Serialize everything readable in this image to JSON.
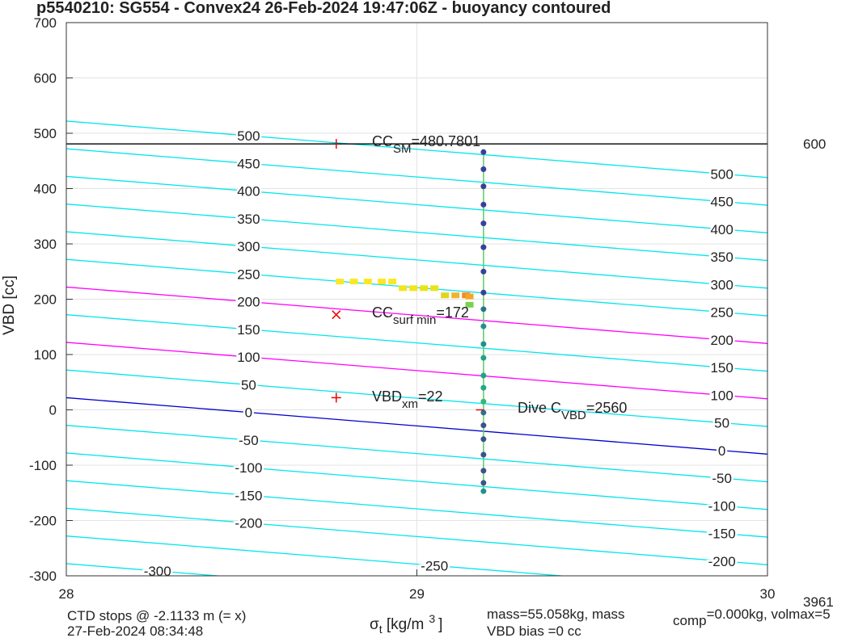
{
  "chart_data": {
    "type": "scatter",
    "title": "p5540210: SG554 - Convex24 26-Feb-2024 19:47:06Z - buoyancy contoured",
    "xlabel": {
      "symbol": "σ",
      "sub": "t",
      "text": " [kg/m",
      "sup": "3",
      "end": "]"
    },
    "ylabel": "VBD [cc]",
    "xlim": [
      28,
      30
    ],
    "xticks": [
      28,
      29,
      30
    ],
    "ylim": [
      -300,
      700
    ],
    "yticks": [
      -300,
      -200,
      -100,
      0,
      100,
      200,
      300,
      400,
      500,
      600,
      700
    ],
    "grid": true,
    "contours": [
      {
        "label": 500,
        "color": "#00e5ee",
        "values": [
          522,
          420
        ]
      },
      {
        "label": 450,
        "color": "#00e5ee",
        "values": [
          472,
          370
        ]
      },
      {
        "label": 400,
        "color": "#00e5ee",
        "values": [
          422,
          320
        ]
      },
      {
        "label": 350,
        "color": "#00e5ee",
        "values": [
          372,
          270
        ]
      },
      {
        "label": 300,
        "color": "#00e5ee",
        "values": [
          322,
          220
        ]
      },
      {
        "label": 250,
        "color": "#00e5ee",
        "values": [
          272,
          170
        ]
      },
      {
        "label": 200,
        "color": "#ff00ff",
        "values": [
          222,
          120
        ]
      },
      {
        "label": 150,
        "color": "#00e5ee",
        "values": [
          172,
          70
        ]
      },
      {
        "label": 100,
        "color": "#ff00ff",
        "values": [
          122,
          20
        ]
      },
      {
        "label": 50,
        "color": "#00e5ee",
        "values": [
          72,
          -30
        ]
      },
      {
        "label": 0,
        "color": "#0000cc",
        "values": [
          22,
          -80
        ]
      },
      {
        "label": -50,
        "color": "#00e5ee",
        "values": [
          -28,
          -130
        ]
      },
      {
        "label": -100,
        "color": "#00e5ee",
        "values": [
          -78,
          -180
        ]
      },
      {
        "label": -150,
        "color": "#00e5ee",
        "values": [
          -128,
          -230
        ]
      },
      {
        "label": -200,
        "color": "#00e5ee",
        "values": [
          -178,
          -280
        ]
      },
      {
        "label": -250,
        "color": "#00e5ee",
        "values": [
          -228,
          -330
        ]
      },
      {
        "label": -300,
        "color": "#00e5ee",
        "values": [
          -278,
          -380
        ]
      }
    ],
    "hline": {
      "value": 480.7801,
      "label": "600",
      "color": "#000000"
    },
    "markers": [
      {
        "symbol": "|",
        "x": 28.77,
        "y": 480.7801
      },
      {
        "symbol": "x",
        "x": 28.77,
        "y": 172
      },
      {
        "symbol": "+",
        "x": 28.77,
        "y": 22
      },
      {
        "symbol": "-",
        "x": 29.18,
        "y": 0
      }
    ],
    "annotations": [
      {
        "text": "CC",
        "sub": "SM",
        "rest": "=480.7801"
      },
      {
        "text": "CC",
        "sub": "surf min",
        "rest": "=172"
      },
      {
        "text": "VBD",
        "sub": "xm",
        "rest": "=22"
      },
      {
        "text": "Dive C",
        "sub": "VBD",
        "rest": "=2560"
      }
    ],
    "series": [
      {
        "name": "dive",
        "line_color": "#5ec962",
        "x": [
          29.19,
          29.19,
          29.19,
          29.19,
          29.19,
          29.19,
          29.19,
          29.19,
          29.19,
          29.19,
          29.19,
          29.19,
          29.19,
          29.19,
          29.19,
          29.19,
          29.19,
          29.19,
          29.19,
          29.19,
          29.19,
          29.19
        ],
        "values": [
          466,
          435,
          404,
          371,
          337,
          294,
          250,
          212,
          182,
          151,
          119,
          94,
          62,
          40,
          15,
          -5,
          -28,
          -53,
          -81,
          -110,
          -132,
          -147
        ],
        "colors": [
          "#3b3f9a",
          "#3b3f9a",
          "#3b3f9a",
          "#3b3f9a",
          "#3b3f9a",
          "#3b3f9a",
          "#3b3f9a",
          "#3b3f9a",
          "#2c728e",
          "#21918c",
          "#21918c",
          "#20a386",
          "#20a386",
          "#22a884",
          "#35b779",
          "#2c728e",
          "#3b528b",
          "#3b528b",
          "#3b528b",
          "#3b528b",
          "#3b528b",
          "#21918c"
        ]
      },
      {
        "name": "surface",
        "color": "#f2e51c",
        "x": [
          28.78,
          28.82,
          28.86,
          28.9,
          28.93,
          28.96,
          28.99,
          29.02,
          29.05,
          29.08,
          29.11,
          29.14,
          29.15,
          29.15
        ],
        "values": [
          232,
          232,
          232,
          232,
          232,
          220,
          220,
          220,
          220,
          207,
          207,
          207,
          205,
          190
        ],
        "colors": [
          "#fde725",
          "#fde725",
          "#fde725",
          "#fde725",
          "#fde725",
          "#f2e51c",
          "#f2e51c",
          "#e8e419",
          "#e8e419",
          "#e0d51c",
          "#f0b429",
          "#f08c29",
          "#f5a623",
          "#7ad151"
        ]
      }
    ],
    "footer": {
      "left1": "CTD stops @ -2.1133 m (= x)",
      "left2": "27-Feb-2024 08:34:48",
      "mid1": "mass=55.058kg, mass",
      "mid1sub": "comp",
      "mid1rest": "=0.000kg, volmax=5",
      "mid2": "VBD bias =0 cc",
      "right": "3961"
    }
  }
}
